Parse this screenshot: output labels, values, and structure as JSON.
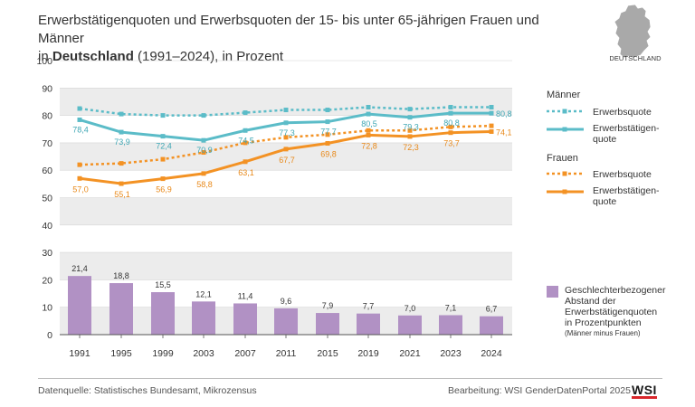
{
  "title": {
    "line1": "Erwerbstätigenquoten und Erwerbsquoten der 15- bis unter 65-jährigen Frauen und Männer",
    "line2_prefix": "in",
    "line2_bold": "Deutschland",
    "line2_suffix": "(1991–2024), in Prozent"
  },
  "map_label": "DEUTSCHLAND",
  "legend": {
    "men_heading": "Männer",
    "women_heading": "Frauen",
    "erwerbsquote": "Erwerbsquote",
    "erwerbstaetigen_line1": "Erwerbstätigen-",
    "erwerbstaetigen_line2": "quote",
    "gap_line1": "Geschlechterbezogener",
    "gap_line2": "Abstand der",
    "gap_line3": "Erwerbstätigenquoten",
    "gap_line4": "in Prozentpunkten",
    "gap_note": "(Männer minus Frauen)"
  },
  "footer": {
    "source": "Datenquelle: Statistisches Bundesamt, Mikrozensus",
    "credit": "Bearbeitung: WSI GenderDatenPortal 2025",
    "logo": "WSI"
  },
  "colors": {
    "men": "#5bbcc8",
    "women": "#f39224",
    "gap_bar": "#b191c4",
    "band": "#ececec",
    "women_label": "#e8891a",
    "men_label": "#3fa7b5"
  },
  "chart_data": {
    "type": "line",
    "title": "Erwerbstätigenquoten und Erwerbsquoten der 15- bis unter 65-jährigen Frauen und Männer in Deutschland (1991–2024), in Prozent",
    "categories": [
      "1991",
      "1995",
      "1999",
      "2003",
      "2007",
      "2011",
      "2015",
      "2019",
      "2021",
      "2023",
      "2024"
    ],
    "yticks": [
      "0",
      "10",
      "20",
      "30",
      "40",
      "50",
      "60",
      "70",
      "80",
      "90",
      "100"
    ],
    "ylim": [
      0,
      100
    ],
    "series": [
      {
        "name": "Männer Erwerbsquote",
        "style": "dotted",
        "values": [
          82.5,
          80.5,
          80.0,
          80.0,
          81.0,
          82.0,
          82.0,
          83.0,
          82.3,
          83.0,
          83.0
        ]
      },
      {
        "name": "Männer Erwerbstätigenquote",
        "style": "solid",
        "values": [
          78.4,
          73.9,
          72.4,
          70.9,
          74.5,
          77.3,
          77.7,
          80.5,
          79.3,
          80.8,
          80.8
        ],
        "labels": [
          "78,4",
          "73,9",
          "72,4",
          "70,9",
          "74,5",
          "77,3",
          "77,7",
          "80,5",
          "79,3",
          "80,8",
          "80,8"
        ]
      },
      {
        "name": "Frauen Erwerbsquote",
        "style": "dotted",
        "values": [
          62.0,
          62.5,
          64.0,
          66.5,
          70.0,
          72.0,
          73.0,
          74.5,
          74.5,
          75.8,
          76.2
        ]
      },
      {
        "name": "Frauen Erwerbstätigenquote",
        "style": "solid",
        "values": [
          57.0,
          55.1,
          56.9,
          58.8,
          63.1,
          67.7,
          69.8,
          72.8,
          72.3,
          73.7,
          74.1
        ],
        "labels": [
          "57,0",
          "55,1",
          "56,9",
          "58,8",
          "63,1",
          "67,7",
          "69,8",
          "72,8",
          "72,3",
          "73,7",
          "74,1"
        ]
      },
      {
        "name": "Geschlechterbezogener Abstand der Erwerbstätigenquoten in Prozentpunkten (Männer minus Frauen)",
        "type": "bar",
        "values": [
          21.4,
          18.8,
          15.5,
          12.1,
          11.4,
          9.6,
          7.9,
          7.7,
          7.0,
          7.1,
          6.7
        ],
        "labels": [
          "21,4",
          "18,8",
          "15,5",
          "12,1",
          "11,4",
          "9,6",
          "7,9",
          "7,7",
          "7,0",
          "7,1",
          "6,7"
        ]
      }
    ]
  }
}
